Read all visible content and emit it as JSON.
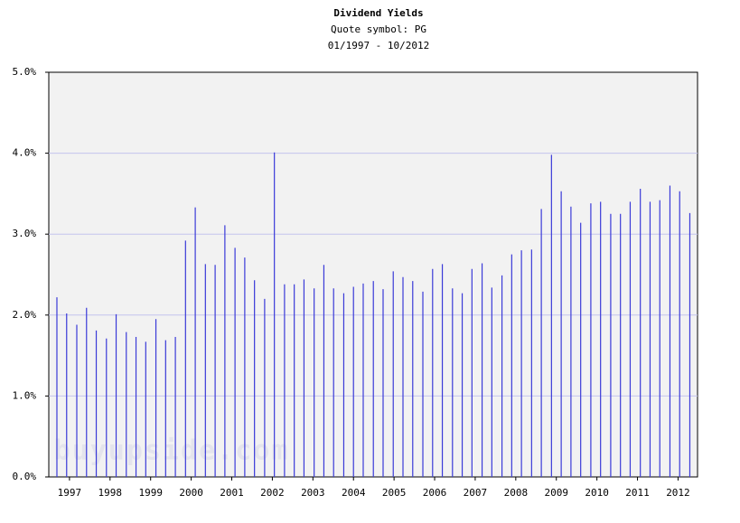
{
  "chart_data": {
    "type": "bar",
    "title": "Dividend Yields",
    "subtitle": [
      "Quote symbol: PG",
      "01/1997 - 10/2012"
    ],
    "watermark": "buyupside.com",
    "color": "#3a3ad8",
    "grid": true,
    "x": [
      1996.69,
      1996.93,
      1997.18,
      1997.42,
      1997.66,
      1997.91,
      1998.15,
      1998.4,
      1998.64,
      1998.88,
      1999.13,
      1999.37,
      1999.61,
      1999.86,
      2000.1,
      2000.35,
      2000.59,
      2000.83,
      2001.08,
      2001.32,
      2001.56,
      2001.81,
      2002.05,
      2002.3,
      2002.54,
      2002.78,
      2003.03,
      2003.27,
      2003.51,
      2003.76,
      2004.0,
      2004.24,
      2004.49,
      2004.73,
      2004.98,
      2005.22,
      2005.46,
      2005.71,
      2005.95,
      2006.19,
      2006.44,
      2006.68,
      2006.92,
      2007.17,
      2007.41,
      2007.66,
      2007.9,
      2008.14,
      2008.39,
      2008.63,
      2008.88,
      2009.12,
      2009.36,
      2009.6,
      2009.85,
      2010.09,
      2010.34,
      2010.58,
      2010.82,
      2011.07,
      2011.31,
      2011.55,
      2011.8,
      2012.04,
      2012.29
    ],
    "values": [
      2.22,
      2.02,
      1.88,
      2.09,
      1.81,
      1.71,
      2.01,
      1.79,
      1.73,
      1.67,
      1.95,
      1.69,
      1.73,
      2.92,
      3.33,
      2.63,
      2.62,
      3.11,
      2.83,
      2.71,
      2.43,
      2.2,
      4.01,
      2.38,
      2.38,
      2.44,
      2.33,
      2.62,
      2.33,
      2.27,
      2.35,
      2.39,
      2.42,
      2.32,
      2.54,
      2.47,
      2.42,
      2.29,
      2.57,
      2.63,
      2.33,
      2.27,
      2.57,
      2.64,
      2.34,
      2.49,
      2.75,
      2.8,
      2.81,
      3.31,
      3.98,
      3.53,
      3.34,
      3.14,
      3.38,
      3.4,
      3.25,
      3.25,
      3.4,
      3.56,
      3.4,
      3.42,
      3.6,
      3.53,
      3.26
    ],
    "xlim": [
      1996.49,
      2012.48
    ],
    "xticks": [
      1997,
      1998,
      1999,
      2000,
      2001,
      2002,
      2003,
      2004,
      2005,
      2006,
      2007,
      2008,
      2009,
      2010,
      2011,
      2012
    ],
    "ylim": [
      0,
      5
    ],
    "yticks": [
      {
        "value": 0,
        "label": "0.0%"
      },
      {
        "value": 1,
        "label": "1.0%"
      },
      {
        "value": 2,
        "label": "2.0%"
      },
      {
        "value": 3,
        "label": "3.0%"
      },
      {
        "value": 4,
        "label": "4.0%"
      },
      {
        "value": 5,
        "label": "5.0%"
      }
    ]
  }
}
